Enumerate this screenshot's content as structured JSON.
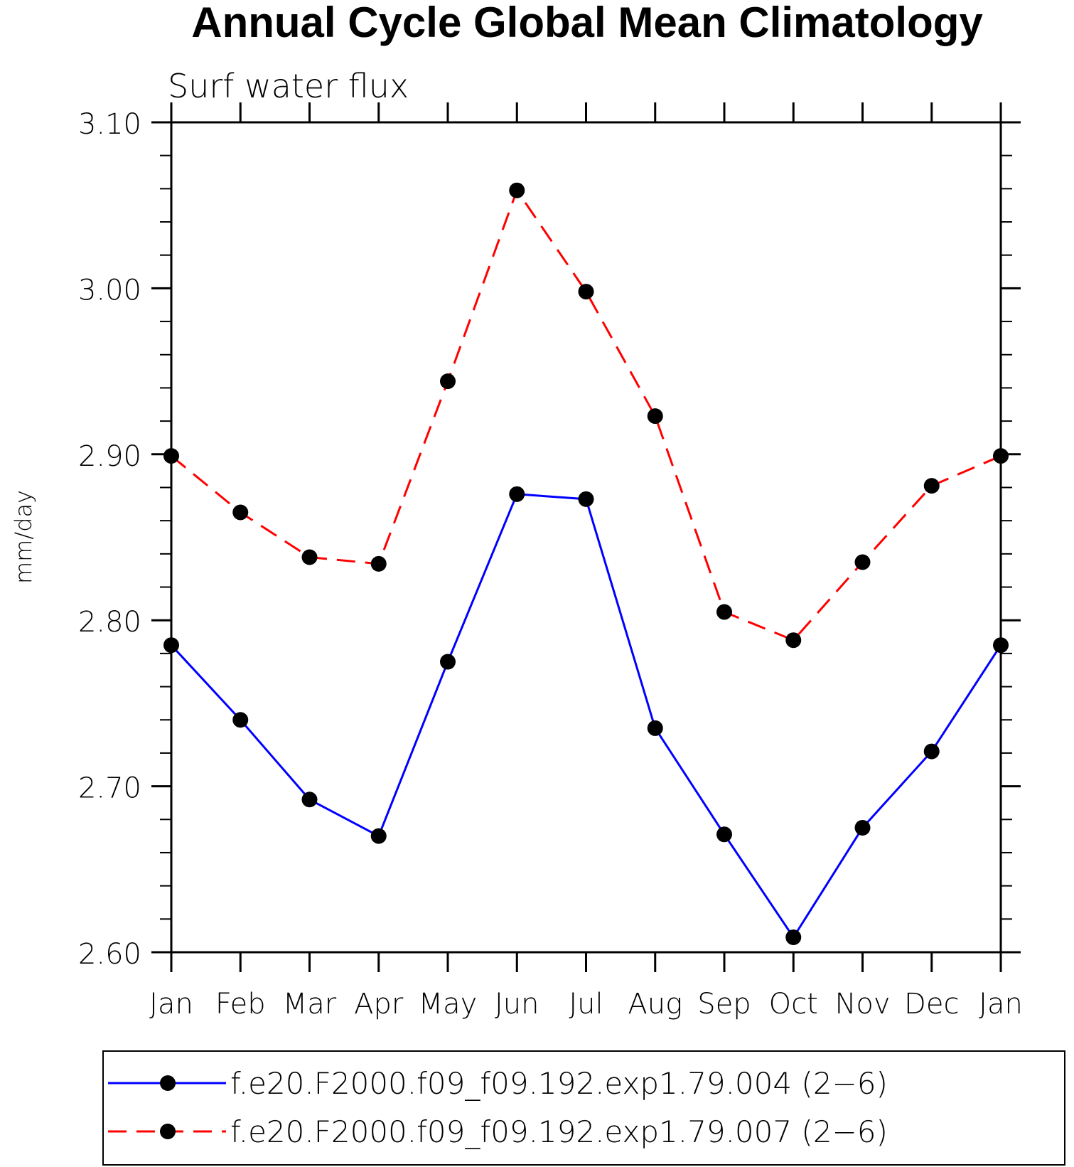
{
  "chart_data": {
    "type": "line",
    "title": "Annual Cycle Global Mean Climatology",
    "subtitle": "Surf water flux",
    "xlabel": "",
    "ylabel": "mm/day",
    "categories": [
      "Jan",
      "Feb",
      "Mar",
      "Apr",
      "May",
      "Jun",
      "Jul",
      "Aug",
      "Sep",
      "Oct",
      "Nov",
      "Dec",
      "Jan"
    ],
    "ylim": [
      2.6,
      3.1
    ],
    "yticks": [
      "2.60",
      "2.70",
      "2.80",
      "2.90",
      "3.00",
      "3.10"
    ],
    "grid": false,
    "legend_position": "bottom",
    "series": [
      {
        "name": "f.e20.F2000.f09_f09.192.exp1.79.004 (2−6)",
        "color": "#0000ff",
        "dash": "solid",
        "marker": "filled-circle",
        "values": [
          2.785,
          2.74,
          2.692,
          2.67,
          2.775,
          2.876,
          2.873,
          2.735,
          2.671,
          2.609,
          2.675,
          2.721,
          2.785
        ]
      },
      {
        "name": "f.e20.F2000.f09_f09.192.exp1.79.007 (2−6)",
        "color": "#ff0000",
        "dash": "dashed",
        "marker": "filled-circle",
        "values": [
          2.899,
          2.865,
          2.838,
          2.834,
          2.944,
          3.059,
          2.998,
          2.923,
          2.805,
          2.788,
          2.835,
          2.881,
          2.899
        ]
      }
    ]
  }
}
